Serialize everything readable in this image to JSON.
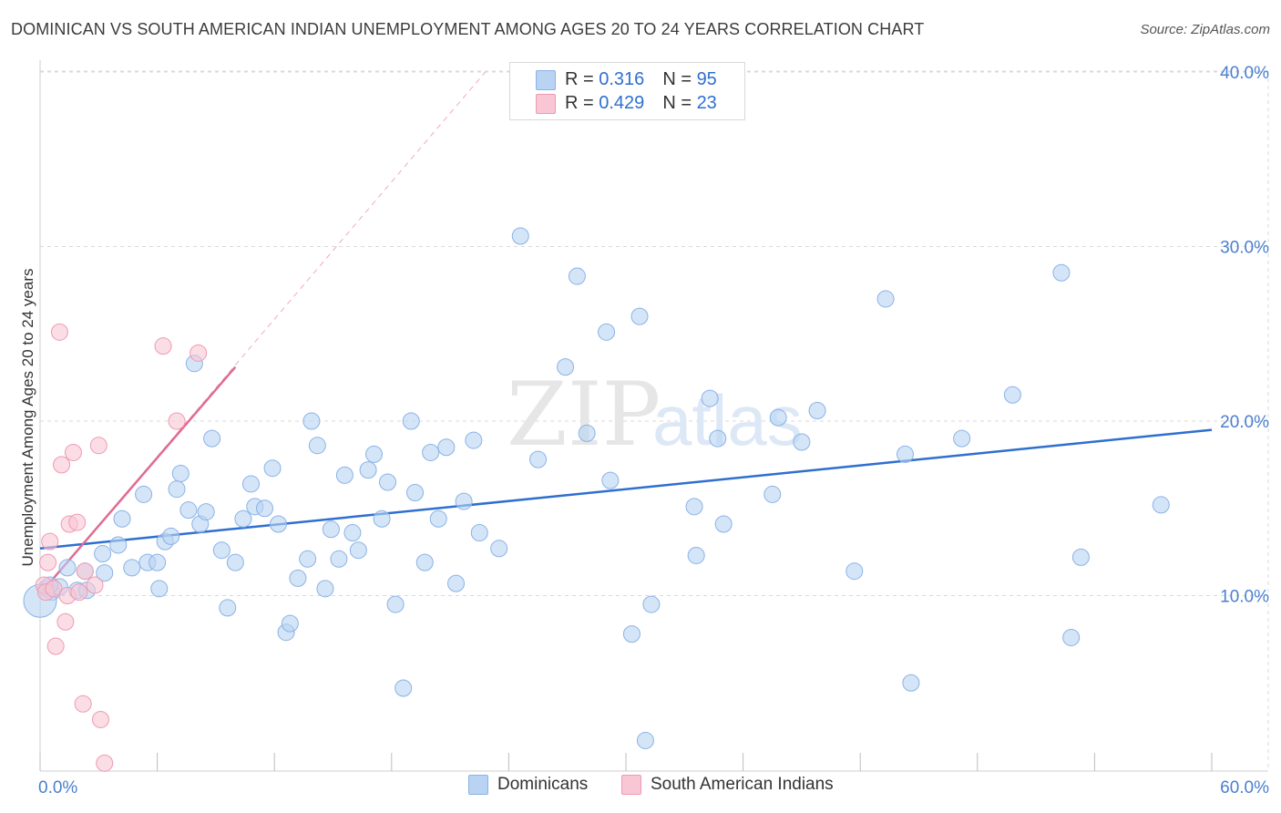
{
  "title": "DOMINICAN VS SOUTH AMERICAN INDIAN UNEMPLOYMENT AMONG AGES 20 TO 24 YEARS CORRELATION CHART",
  "source": "Source: ZipAtlas.com",
  "watermark": {
    "zip": "ZIP",
    "atlas": "atlas"
  },
  "legend": {
    "rows": [
      {
        "r_label": "R =",
        "r_value": "0.316",
        "n_label": "N =",
        "n_value": "95"
      },
      {
        "r_label": "R =",
        "r_value": "0.429",
        "n_label": "N =",
        "n_value": "23"
      }
    ]
  },
  "bottom_legend": {
    "series1": "Dominicans",
    "series2": "South American Indians"
  },
  "colors": {
    "blue_fill": "#b9d3f3",
    "blue_stroke": "#8ab2e6",
    "blue_line": "#2f6fcf",
    "pink_fill": "#f8c6d4",
    "pink_stroke": "#ee9ab3",
    "pink_line": "#e06a93",
    "axis_text": "#4a7fd0",
    "grid": "#d9d9d9"
  },
  "chart_data": {
    "type": "scatter",
    "title": "DOMINICAN VS SOUTH AMERICAN INDIAN UNEMPLOYMENT AMONG AGES 20 TO 24 YEARS CORRELATION CHART",
    "xlabel": "",
    "ylabel": "Unemployment Among Ages 20 to 24 years",
    "xlim": [
      0,
      60
    ],
    "ylim": [
      0,
      40
    ],
    "x_tick_labels": [
      "0.0%",
      "60.0%"
    ],
    "y_ticks": [
      10,
      20,
      30,
      40
    ],
    "y_tick_labels": [
      "10.0%",
      "20.0%",
      "30.0%",
      "40.0%"
    ],
    "grid": true,
    "series": [
      {
        "name": "Dominicans",
        "R": 0.316,
        "N": 95,
        "trend": {
          "x": [
            0,
            60
          ],
          "y": [
            12.7,
            19.5
          ]
        },
        "points": [
          [
            0.3,
            10.4
          ],
          [
            0.6,
            10.2
          ],
          [
            1.0,
            10.5
          ],
          [
            1.4,
            11.6
          ],
          [
            1.9,
            10.3
          ],
          [
            2.3,
            11.4
          ],
          [
            2.4,
            10.3
          ],
          [
            3.3,
            11.3
          ],
          [
            3.2,
            12.4
          ],
          [
            4.0,
            12.9
          ],
          [
            4.2,
            14.4
          ],
          [
            4.7,
            11.6
          ],
          [
            5.3,
            15.8
          ],
          [
            5.5,
            11.9
          ],
          [
            6.0,
            11.9
          ],
          [
            6.1,
            10.4
          ],
          [
            6.4,
            13.1
          ],
          [
            6.7,
            13.4
          ],
          [
            7.0,
            16.1
          ],
          [
            7.2,
            17.0
          ],
          [
            7.6,
            14.9
          ],
          [
            7.9,
            23.3
          ],
          [
            8.2,
            14.1
          ],
          [
            8.5,
            14.8
          ],
          [
            8.8,
            19.0
          ],
          [
            9.3,
            12.6
          ],
          [
            9.6,
            9.3
          ],
          [
            10.0,
            11.9
          ],
          [
            10.4,
            14.4
          ],
          [
            10.8,
            16.4
          ],
          [
            11.0,
            15.1
          ],
          [
            11.5,
            15.0
          ],
          [
            11.9,
            17.3
          ],
          [
            12.2,
            14.1
          ],
          [
            12.6,
            7.9
          ],
          [
            12.8,
            8.4
          ],
          [
            13.2,
            11.0
          ],
          [
            13.7,
            12.1
          ],
          [
            13.9,
            20.0
          ],
          [
            14.2,
            18.6
          ],
          [
            14.6,
            10.4
          ],
          [
            14.9,
            13.8
          ],
          [
            15.3,
            12.1
          ],
          [
            15.6,
            16.9
          ],
          [
            16.0,
            13.6
          ],
          [
            16.3,
            12.6
          ],
          [
            16.8,
            17.2
          ],
          [
            17.1,
            18.1
          ],
          [
            17.5,
            14.4
          ],
          [
            17.8,
            16.5
          ],
          [
            18.2,
            9.5
          ],
          [
            18.6,
            4.7
          ],
          [
            19.0,
            20.0
          ],
          [
            19.2,
            15.9
          ],
          [
            19.7,
            11.9
          ],
          [
            20.0,
            18.2
          ],
          [
            20.4,
            14.4
          ],
          [
            20.8,
            18.5
          ],
          [
            21.3,
            10.7
          ],
          [
            21.7,
            15.4
          ],
          [
            22.2,
            18.9
          ],
          [
            22.5,
            13.6
          ],
          [
            23.5,
            12.7
          ],
          [
            24.6,
            30.6
          ],
          [
            25.5,
            17.8
          ],
          [
            26.9,
            23.1
          ],
          [
            27.5,
            28.3
          ],
          [
            28.0,
            19.3
          ],
          [
            29.0,
            25.1
          ],
          [
            29.2,
            16.6
          ],
          [
            30.3,
            7.8
          ],
          [
            30.7,
            26.0
          ],
          [
            31.0,
            1.7
          ],
          [
            31.3,
            9.5
          ],
          [
            33.5,
            15.1
          ],
          [
            33.6,
            12.3
          ],
          [
            34.3,
            21.3
          ],
          [
            34.7,
            19.0
          ],
          [
            35.0,
            14.1
          ],
          [
            37.5,
            15.8
          ],
          [
            37.8,
            20.2
          ],
          [
            39.0,
            18.8
          ],
          [
            39.8,
            20.6
          ],
          [
            41.7,
            11.4
          ],
          [
            43.3,
            27.0
          ],
          [
            44.3,
            18.1
          ],
          [
            44.6,
            5.0
          ],
          [
            47.2,
            19.0
          ],
          [
            49.8,
            21.5
          ],
          [
            52.3,
            28.5
          ],
          [
            52.8,
            7.6
          ],
          [
            53.3,
            12.2
          ],
          [
            57.4,
            15.2
          ],
          [
            0.0,
            9.7
          ],
          [
            0.5,
            10.6
          ]
        ]
      },
      {
        "name": "South American Indians",
        "R": 0.429,
        "N": 23,
        "trend": {
          "x": [
            0,
            10
          ],
          "y": [
            10.1,
            23.1
          ]
        },
        "trend_extension": {
          "x": [
            0,
            22.8
          ],
          "y": [
            10.1,
            40.0
          ]
        },
        "points": [
          [
            0.2,
            10.6
          ],
          [
            0.3,
            10.2
          ],
          [
            0.4,
            11.9
          ],
          [
            0.5,
            13.1
          ],
          [
            0.7,
            10.4
          ],
          [
            0.8,
            7.1
          ],
          [
            1.0,
            25.1
          ],
          [
            1.1,
            17.5
          ],
          [
            1.3,
            8.5
          ],
          [
            1.4,
            10.0
          ],
          [
            1.5,
            14.1
          ],
          [
            1.7,
            18.2
          ],
          [
            1.9,
            14.2
          ],
          [
            2.0,
            10.2
          ],
          [
            2.2,
            3.8
          ],
          [
            2.3,
            11.4
          ],
          [
            2.8,
            10.6
          ],
          [
            3.0,
            18.6
          ],
          [
            3.1,
            2.9
          ],
          [
            3.3,
            0.4
          ],
          [
            6.3,
            24.3
          ],
          [
            7.0,
            20.0
          ],
          [
            8.1,
            23.9
          ]
        ]
      }
    ]
  }
}
